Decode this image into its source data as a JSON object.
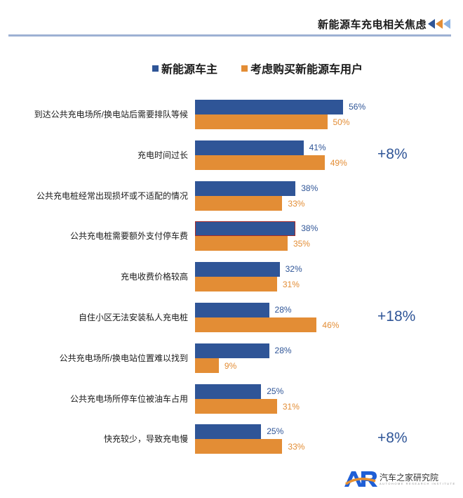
{
  "header": {
    "title": "新能源车充电相关焦虑",
    "arrow_colors": [
      "#2f5597",
      "#e38d35",
      "#8eb4e3"
    ]
  },
  "legend": [
    {
      "label": "新能源车主",
      "color": "#2f5597"
    },
    {
      "label": "考虑购买新能源车用户",
      "color": "#e38d35"
    }
  ],
  "chart_data": {
    "type": "bar",
    "orientation": "horizontal",
    "title": "新能源车充电相关焦虑",
    "xlabel": "",
    "ylabel": "",
    "grid": false,
    "legend_position": "top",
    "categories": [
      "到达公共充电场所/换电站后需要排队等候",
      "充电时间过长",
      "公共充电桩经常出现损坏或不适配的情况",
      "公共充电桩需要额外支付停车费",
      "充电收费价格较高",
      "自住小区无法安装私人充电桩",
      "公共充电场所/换电站位置难以找到",
      "公共充电场所停车位被油车占用",
      "快充较少，导致充电慢"
    ],
    "series": [
      {
        "name": "新能源车主",
        "color": "#2f5597",
        "values": [
          56,
          41,
          38,
          38,
          32,
          28,
          28,
          25,
          25
        ]
      },
      {
        "name": "考虑购买新能源车用户",
        "color": "#e38d35",
        "values": [
          50,
          49,
          33,
          35,
          31,
          46,
          9,
          31,
          33
        ]
      }
    ],
    "annotations": [
      {
        "category_index": 1,
        "text": "+8%"
      },
      {
        "category_index": 5,
        "text": "+18%"
      },
      {
        "category_index": 8,
        "text": "+8%"
      }
    ],
    "unit": "%"
  },
  "rows": [
    {
      "label": "到达公共充电场所/换电站后需要排队等候",
      "v1": "56%",
      "v2": "50%",
      "delta": ""
    },
    {
      "label": "充电时间过长",
      "v1": "41%",
      "v2": "49%",
      "delta": "+8%"
    },
    {
      "label": "公共充电桩经常出现损坏或不适配的情况",
      "v1": "38%",
      "v2": "33%",
      "delta": ""
    },
    {
      "label": "公共充电桩需要额外支付停车费",
      "v1": "38%",
      "v2": "35%",
      "delta": ""
    },
    {
      "label": "充电收费价格较高",
      "v1": "32%",
      "v2": "31%",
      "delta": ""
    },
    {
      "label": "自住小区无法安装私人充电桩",
      "v1": "28%",
      "v2": "46%",
      "delta": "+18%"
    },
    {
      "label": "公共充电场所/换电站位置难以找到",
      "v1": "28%",
      "v2": "9%",
      "delta": ""
    },
    {
      "label": "公共充电场所停车位被油车占用",
      "v1": "25%",
      "v2": "31%",
      "delta": ""
    },
    {
      "label": "快充较少，导致充电慢",
      "v1": "25%",
      "v2": "33%",
      "delta": "+8%"
    }
  ],
  "footer": {
    "logo_text": "AR",
    "org_name": "汽车之家研究院",
    "org_sub": "AUTOHOME RESEARCH INSTITUTE"
  }
}
